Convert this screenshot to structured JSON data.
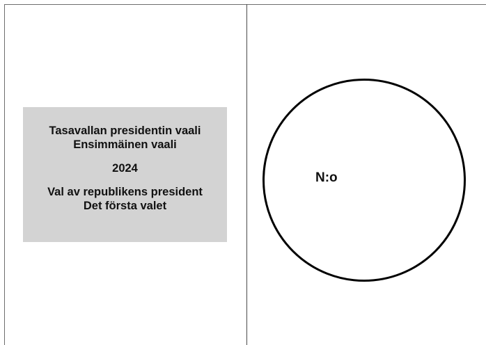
{
  "ballot": {
    "title_fi_line1": "Tasavallan presidentin vaali",
    "title_fi_line2": "Ensimmäinen vaali",
    "year": "2024",
    "title_sv_line1": "Val av republikens president",
    "title_sv_line2": "Det första valet",
    "number_label": "N:o"
  }
}
